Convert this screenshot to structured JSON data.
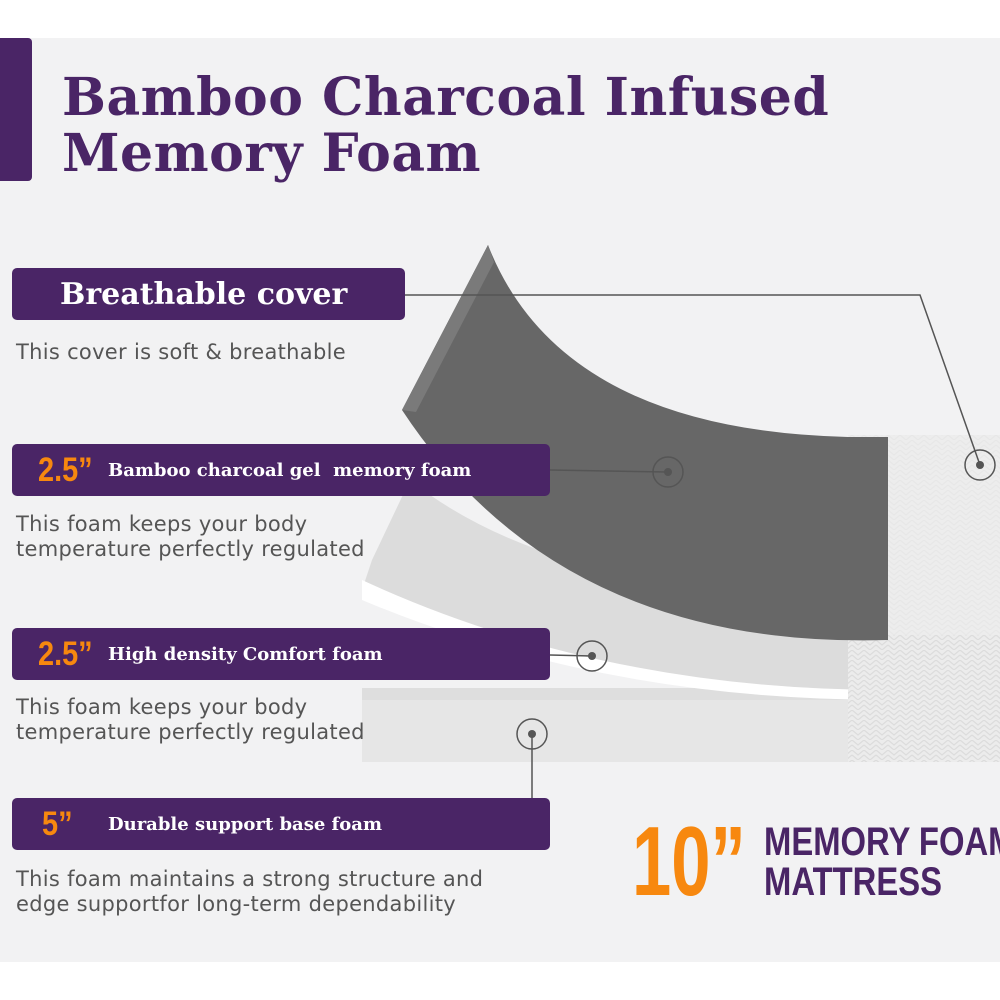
{
  "title": {
    "line1": "Bamboo Charcoal Infused",
    "line2": "Memory Foam"
  },
  "layers": [
    {
      "thickness": "",
      "label": "Breathable cover",
      "description": [
        "This cover is soft & breathable"
      ]
    },
    {
      "thickness": "2.5”",
      "label": "Bamboo charcoal gel  memory foam",
      "description": [
        "This foam keeps your body",
        "temperature perfectly regulated"
      ]
    },
    {
      "thickness": "2.5”",
      "label": "High density Comfort foam",
      "description": [
        "This foam keeps your body",
        "temperature perfectly regulated"
      ]
    },
    {
      "thickness": "5”",
      "label": "Durable support base foam",
      "description": [
        "This foam maintains a strong structure and",
        "edge supportfor long-term dependability"
      ]
    }
  ],
  "summary": {
    "size": "10”",
    "line1": "MEMORY FOAM",
    "line2": "MATTRESS"
  },
  "colors": {
    "purple": "#4a2566",
    "orange": "#f7880f",
    "background": "#f2f2f3"
  }
}
